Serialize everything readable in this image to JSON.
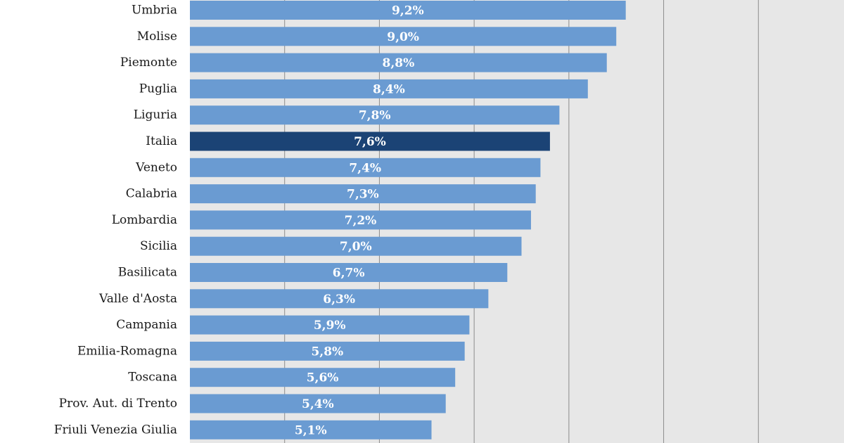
{
  "chart_data": {
    "type": "bar",
    "orientation": "horizontal",
    "categories": [
      "Umbria",
      "Molise",
      "Piemonte",
      "Puglia",
      "Liguria",
      "Italia",
      "Veneto",
      "Calabria",
      "Lombardia",
      "Sicilia",
      "Basilicata",
      "Valle d'Aosta",
      "Campania",
      "Emilia-Romagna",
      "Toscana",
      "Prov. Aut. di Trento",
      "Friuli Venezia Giulia"
    ],
    "values": [
      9.2,
      9.0,
      8.8,
      8.4,
      7.8,
      7.6,
      7.4,
      7.3,
      7.2,
      7.0,
      6.7,
      6.3,
      5.9,
      5.8,
      5.6,
      5.4,
      5.1
    ],
    "value_labels": [
      "9,2%",
      "9,0%",
      "8,8%",
      "8,4%",
      "7,8%",
      "7,6%",
      "7,4%",
      "7,3%",
      "7,2%",
      "7,0%",
      "6,7%",
      "6,3%",
      "5,9%",
      "5,8%",
      "5,6%",
      "5,4%",
      "5,1%"
    ],
    "highlight_category": "Italia",
    "xlim": [
      0,
      14
    ],
    "x_gridlines": [
      2,
      4,
      6,
      8,
      10,
      12,
      14
    ],
    "grid": true,
    "title": "",
    "xlabel": "",
    "ylabel": ""
  },
  "colors": {
    "bar": "#6a9bd2",
    "bar_highlight": "#1b4375",
    "plot_background": "#e7e7e7",
    "gridline": "#8c8c8c",
    "value_label": "#ffffff",
    "category_label": "#1a1a1a"
  }
}
